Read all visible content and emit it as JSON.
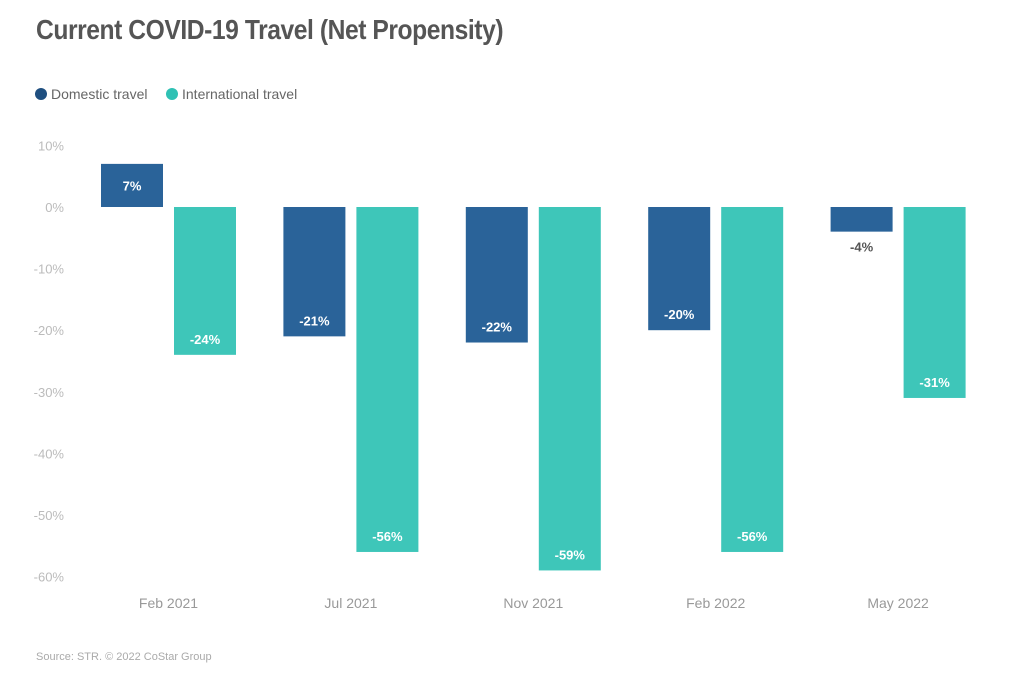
{
  "chart_data": {
    "type": "bar",
    "title": "Current COVID-19 Travel (Net Propensity)",
    "categories": [
      "Feb 2021",
      "Jul 2021",
      "Nov 2021",
      "Feb 2022",
      "May 2022"
    ],
    "series": [
      {
        "name": "Domestic travel",
        "values": [
          7,
          -21,
          -22,
          -20,
          -4
        ],
        "color": "#2a6399",
        "legend_color": "#1f4f80"
      },
      {
        "name": "International travel",
        "values": [
          -24,
          -56,
          -59,
          -56,
          -31
        ],
        "color": "#3ec6b9",
        "legend_color": "#2fc1b4"
      }
    ],
    "ylim": [
      -60,
      10
    ],
    "yticks": [
      "10%",
      "0%",
      "-10%",
      "-20%",
      "-30%",
      "-40%",
      "-50%",
      "-60%"
    ],
    "data_labels": [
      [
        "7%",
        "-21%",
        "-22%",
        "-20%",
        "-4%"
      ],
      [
        "-24%",
        "-56%",
        "-59%",
        "-56%",
        "-31%"
      ]
    ],
    "grid": false,
    "legend_position": "top-left",
    "xlabel": "",
    "ylabel": "",
    "source": "Source: STR. © 2022 CoStar Group"
  }
}
